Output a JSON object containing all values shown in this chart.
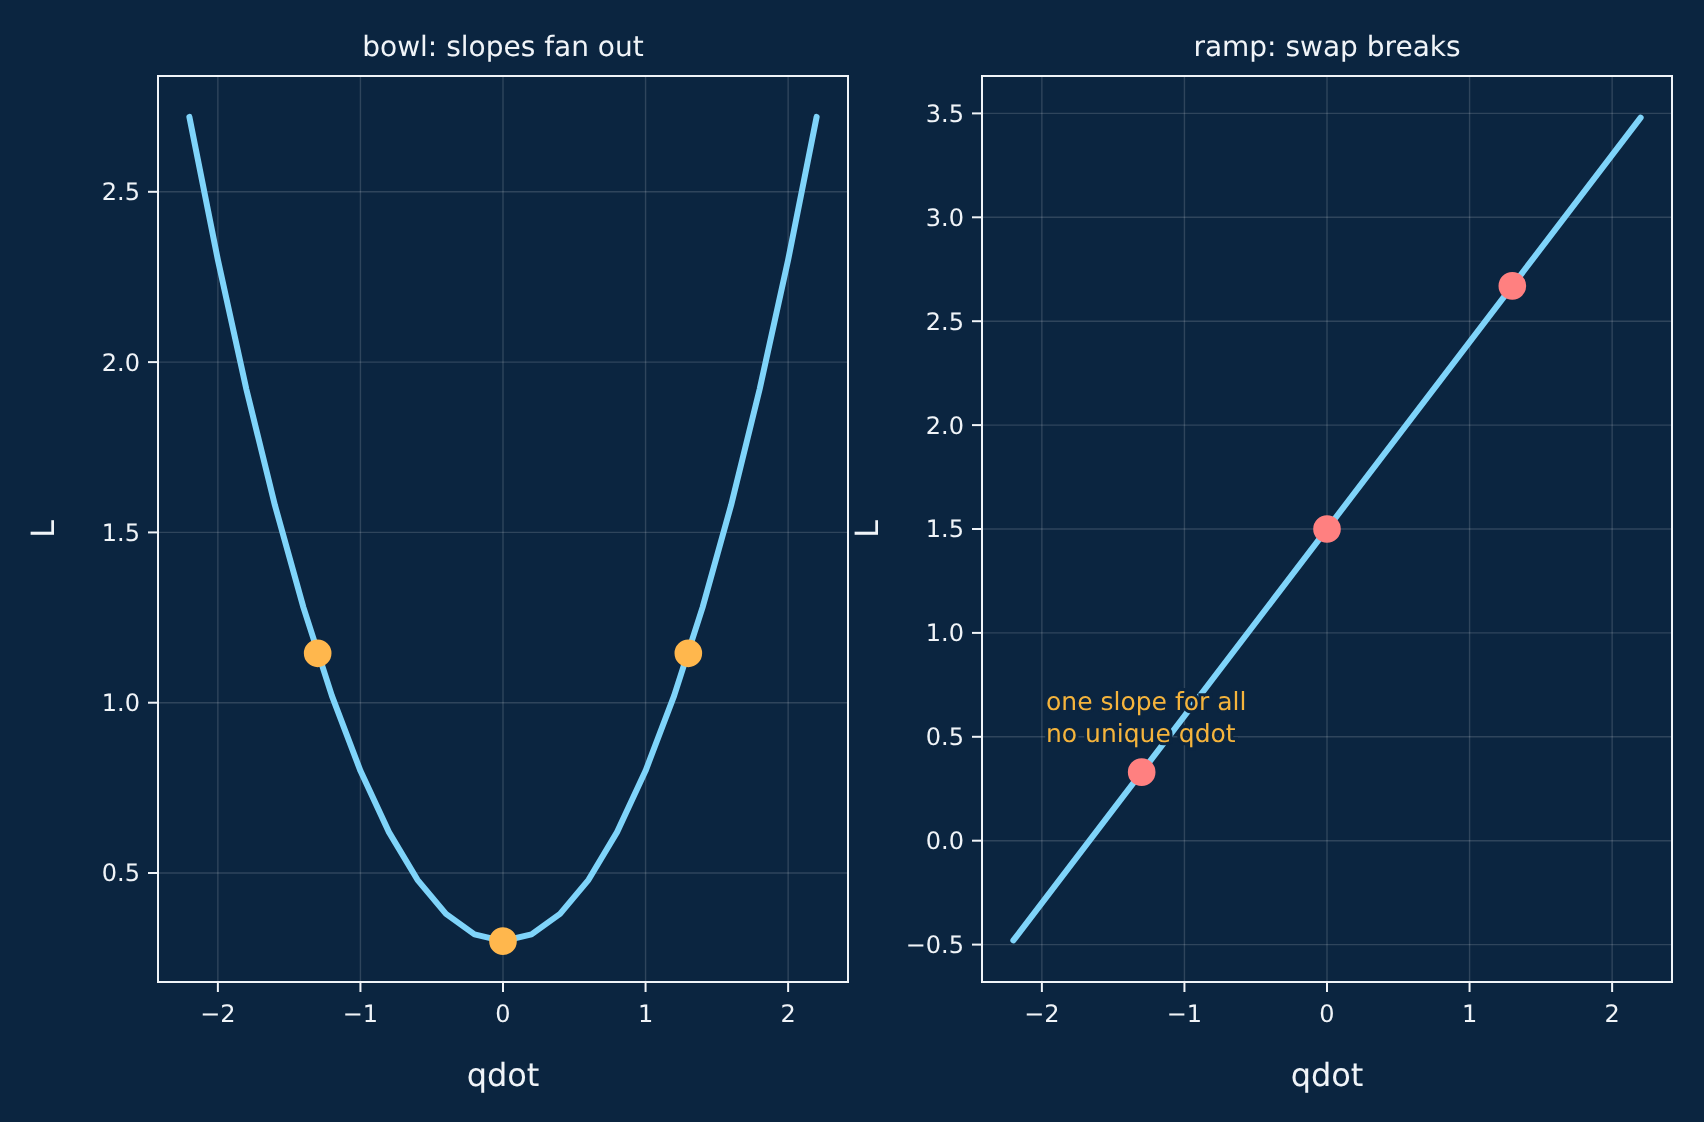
{
  "chart_data": [
    {
      "type": "line",
      "title": "bowl: slopes fan out",
      "xlabel": "qdot",
      "ylabel": "L",
      "xlim": [
        -2.42,
        2.42
      ],
      "xticks": [
        -2,
        -1,
        0,
        1,
        2
      ],
      "ylim": [
        0.18,
        2.84
      ],
      "yticks": [
        0.5,
        {
          "value": 1,
          "label": "1.0"
        },
        1.5,
        {
          "value": 2,
          "label": "2.0"
        },
        2.5
      ],
      "grid": true,
      "series": [
        {
          "color": "#7fd4fa",
          "x": [
            -2.2,
            -2.0,
            -1.8,
            -1.6,
            -1.4,
            -1.2,
            -1.0,
            -0.8,
            -0.6,
            -0.4,
            -0.2,
            0,
            0.2,
            0.4,
            0.6,
            0.8,
            1.0,
            1.2,
            1.4,
            1.6,
            1.8,
            2.0,
            2.2
          ],
          "values": [
            2.72,
            2.3,
            1.92,
            1.58,
            1.28,
            1.02,
            0.8,
            0.62,
            0.48,
            0.38,
            0.32,
            0.3,
            0.32,
            0.38,
            0.48,
            0.62,
            0.8,
            1.02,
            1.28,
            1.58,
            1.92,
            2.3,
            2.72
          ]
        },
        {
          "type": "scatter",
          "marker": "circle",
          "color": "#ffb74d",
          "x": [
            -1.3,
            0,
            1.3
          ],
          "values": [
            1.145,
            0.3,
            1.145
          ]
        }
      ]
    },
    {
      "type": "line",
      "title": "ramp: swap breaks",
      "xlabel": "qdot",
      "ylabel": "L",
      "xlim": [
        -2.42,
        2.42
      ],
      "xticks": [
        -2,
        -1,
        0,
        1,
        2
      ],
      "ylim": [
        -0.68,
        3.68
      ],
      "yticks": [
        -0.5,
        {
          "value": 0,
          "label": "0.0"
        },
        0.5,
        {
          "value": 1,
          "label": "1.0"
        },
        1.5,
        {
          "value": 2,
          "label": "2.0"
        },
        2.5,
        {
          "value": 3,
          "label": "3.0"
        },
        3.5
      ],
      "grid": true,
      "annotations": [
        "one slope for all\nno unique qdot"
      ],
      "series": [
        {
          "color": "#7fd4fa",
          "x": [
            -2.2,
            2.2
          ],
          "values": [
            -0.48,
            3.48
          ]
        },
        {
          "type": "scatter",
          "marker": "circle",
          "color": "#ff8080",
          "x": [
            -1.3,
            0,
            1.3
          ],
          "values": [
            0.33,
            1.5,
            2.67
          ]
        }
      ]
    }
  ]
}
